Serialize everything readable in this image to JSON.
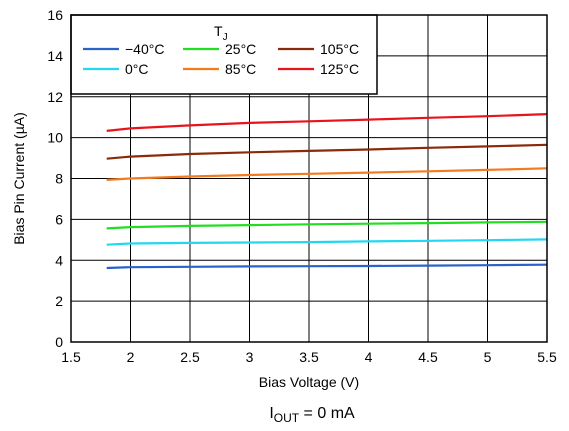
{
  "chart_data": {
    "type": "line",
    "xlabel": "Bias Voltage (V)",
    "ylabel": "Bias Pin Current (µA)",
    "xlim": [
      1.5,
      5.5
    ],
    "ylim": [
      0,
      16
    ],
    "xticks": [
      "1.5",
      "2",
      "2.5",
      "3",
      "3.5",
      "4",
      "4.5",
      "5",
      "5.5"
    ],
    "yticks": [
      "0",
      "2",
      "4",
      "6",
      "8",
      "10",
      "12",
      "14",
      "16"
    ],
    "grid": true,
    "legend": {
      "title_main": "T",
      "title_sub": "J",
      "placement": "top-left"
    },
    "series": [
      {
        "name": "−40°C",
        "color": "#2a62c9",
        "points": [
          [
            1.8,
            3.62
          ],
          [
            2.0,
            3.66
          ],
          [
            2.5,
            3.68
          ],
          [
            3.0,
            3.7
          ],
          [
            3.5,
            3.71
          ],
          [
            4.0,
            3.72
          ],
          [
            4.5,
            3.74
          ],
          [
            5.0,
            3.76
          ],
          [
            5.5,
            3.78
          ]
        ]
      },
      {
        "name": "0°C",
        "color": "#22d7f0",
        "points": [
          [
            1.8,
            4.76
          ],
          [
            2.0,
            4.82
          ],
          [
            2.5,
            4.85
          ],
          [
            3.0,
            4.87
          ],
          [
            3.5,
            4.89
          ],
          [
            4.0,
            4.92
          ],
          [
            4.5,
            4.95
          ],
          [
            5.0,
            4.98
          ],
          [
            5.5,
            5.02
          ]
        ]
      },
      {
        "name": "25°C",
        "color": "#22dd22",
        "points": [
          [
            1.8,
            5.56
          ],
          [
            2.0,
            5.62
          ],
          [
            2.5,
            5.68
          ],
          [
            3.0,
            5.72
          ],
          [
            3.5,
            5.76
          ],
          [
            4.0,
            5.79
          ],
          [
            4.5,
            5.82
          ],
          [
            5.0,
            5.85
          ],
          [
            5.5,
            5.88
          ]
        ]
      },
      {
        "name": "85°C",
        "color": "#f47a1f",
        "points": [
          [
            1.8,
            7.93
          ],
          [
            2.0,
            8.0
          ],
          [
            2.5,
            8.1
          ],
          [
            3.0,
            8.17
          ],
          [
            3.5,
            8.23
          ],
          [
            4.0,
            8.29
          ],
          [
            4.5,
            8.35
          ],
          [
            5.0,
            8.42
          ],
          [
            5.5,
            8.5
          ]
        ]
      },
      {
        "name": "105°C",
        "color": "#8b2a0a",
        "points": [
          [
            1.8,
            8.97
          ],
          [
            2.0,
            9.07
          ],
          [
            2.5,
            9.2
          ],
          [
            3.0,
            9.28
          ],
          [
            3.5,
            9.35
          ],
          [
            4.0,
            9.42
          ],
          [
            4.5,
            9.5
          ],
          [
            5.0,
            9.57
          ],
          [
            5.5,
            9.65
          ]
        ]
      },
      {
        "name": "125°C",
        "color": "#e8141c",
        "points": [
          [
            1.8,
            10.33
          ],
          [
            2.0,
            10.45
          ],
          [
            2.5,
            10.6
          ],
          [
            3.0,
            10.72
          ],
          [
            3.5,
            10.8
          ],
          [
            4.0,
            10.88
          ],
          [
            4.5,
            10.97
          ],
          [
            5.0,
            11.05
          ],
          [
            5.5,
            11.15
          ]
        ]
      }
    ],
    "condition": {
      "main": "I",
      "sub": "OUT",
      "rest": " = 0 mA"
    }
  }
}
